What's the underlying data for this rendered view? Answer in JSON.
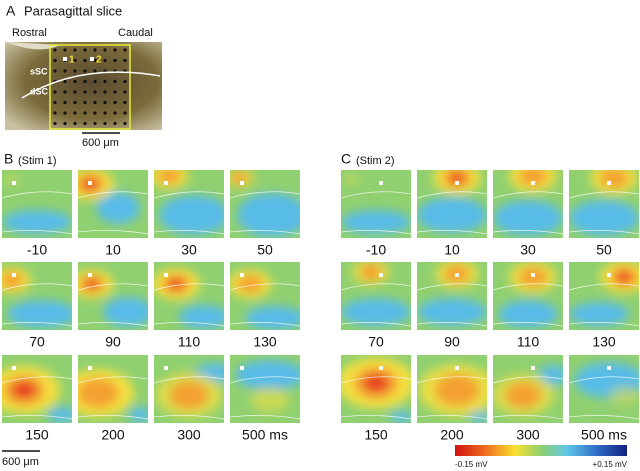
{
  "panel_a": {
    "label": "A",
    "title": "Parasagittal slice",
    "rostral": "Rostral",
    "caudal": "Caudal",
    "layer_top": "sSC",
    "layer_bottom": "dSC",
    "site_1": "1",
    "site_2": "2",
    "scale_bar": "600 μm"
  },
  "panel_b": {
    "label": "B",
    "stim": "(Stim 1)",
    "frames": [
      "-10",
      "10",
      "30",
      "50",
      "70",
      "90",
      "110",
      "130",
      "150",
      "200",
      "300",
      "500 ms"
    ]
  },
  "panel_c": {
    "label": "C",
    "stim": "(Stim 2)",
    "frames": [
      "-10",
      "10",
      "30",
      "50",
      "70",
      "90",
      "110",
      "130",
      "150",
      "200",
      "300",
      "500 ms"
    ]
  },
  "scale_bar": "600 μm",
  "colorbar": {
    "min_label": "-0.15 mV",
    "max_label": "+0.15 mV"
  }
}
